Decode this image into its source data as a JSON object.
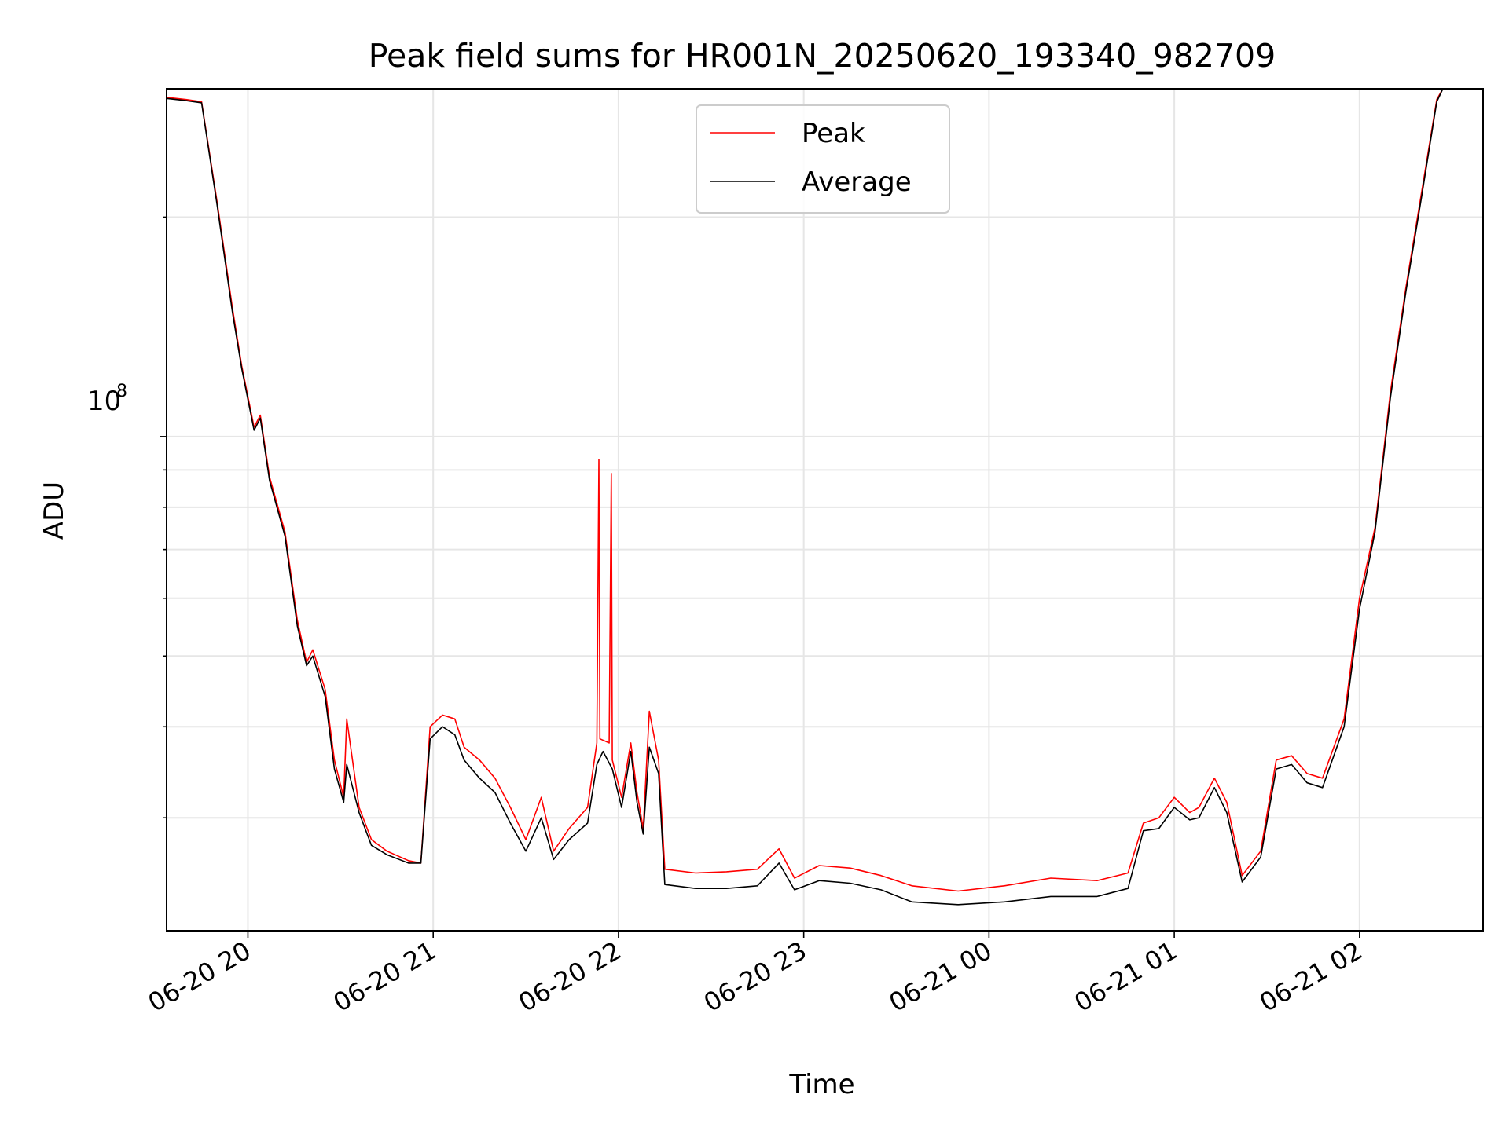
{
  "chart_data": {
    "type": "line",
    "title": "Peak field sums for HR001N_20250620_193340_982709",
    "xlabel": "Time",
    "ylabel": "ADU",
    "x_scale": "time",
    "y_scale": "log",
    "xlim": [
      "2025-06-20 19:33:40",
      "2025-06-21 02:40:00"
    ],
    "ylim": [
      21000000,
      300000000
    ],
    "x_ticks": [
      "06-20 20",
      "06-20 21",
      "06-20 22",
      "06-20 23",
      "06-21 00",
      "06-21 01",
      "06-21 02"
    ],
    "y_tick_label_base": "10",
    "y_tick_label_exp": "8",
    "grid": true,
    "legend_position": "upper center",
    "series": [
      {
        "name": "Peak",
        "color": "#ff0000",
        "points": [
          [
            "2025-06-20 19:33:40",
            292000000
          ],
          [
            "2025-06-20 19:40:00",
            290000000
          ],
          [
            "2025-06-20 19:45:00",
            288000000
          ],
          [
            "2025-06-20 19:50:00",
            210000000
          ],
          [
            "2025-06-20 19:55:00",
            150000000
          ],
          [
            "2025-06-20 19:58:00",
            125000000
          ],
          [
            "2025-06-20 20:02:00",
            103000000
          ],
          [
            "2025-06-20 20:04:00",
            107000000
          ],
          [
            "2025-06-20 20:07:00",
            88000000
          ],
          [
            "2025-06-20 20:12:00",
            74000000
          ],
          [
            "2025-06-20 20:16:00",
            56000000
          ],
          [
            "2025-06-20 20:19:00",
            49000000
          ],
          [
            "2025-06-20 20:21:00",
            51000000
          ],
          [
            "2025-06-20 20:25:00",
            45000000
          ],
          [
            "2025-06-20 20:28:00",
            36000000
          ],
          [
            "2025-06-20 20:31:00",
            32000000
          ],
          [
            "2025-06-20 20:32:00",
            41000000
          ],
          [
            "2025-06-20 20:36:00",
            31000000
          ],
          [
            "2025-06-20 20:40:00",
            28000000
          ],
          [
            "2025-06-20 20:45:00",
            27000000
          ],
          [
            "2025-06-20 20:52:00",
            26200000
          ],
          [
            "2025-06-20 20:56:00",
            26000000
          ],
          [
            "2025-06-20 20:59:00",
            40000000
          ],
          [
            "2025-06-20 21:03:00",
            41500000
          ],
          [
            "2025-06-20 21:07:00",
            41000000
          ],
          [
            "2025-06-20 21:10:00",
            37500000
          ],
          [
            "2025-06-20 21:15:00",
            36000000
          ],
          [
            "2025-06-20 21:20:00",
            34000000
          ],
          [
            "2025-06-20 21:25:00",
            31000000
          ],
          [
            "2025-06-20 21:30:00",
            28000000
          ],
          [
            "2025-06-20 21:35:00",
            32000000
          ],
          [
            "2025-06-20 21:39:00",
            27000000
          ],
          [
            "2025-06-20 21:44:00",
            29000000
          ],
          [
            "2025-06-20 21:50:00",
            31000000
          ],
          [
            "2025-06-20 21:53:00",
            38000000
          ],
          [
            "2025-06-20 21:53:40",
            93000000
          ],
          [
            "2025-06-20 21:54:00",
            38500000
          ],
          [
            "2025-06-20 21:57:00",
            38000000
          ],
          [
            "2025-06-20 21:57:40",
            89000000
          ],
          [
            "2025-06-20 21:58:00",
            36000000
          ],
          [
            "2025-06-20 22:01:00",
            32000000
          ],
          [
            "2025-06-20 22:04:00",
            38000000
          ],
          [
            "2025-06-20 22:06:00",
            32500000
          ],
          [
            "2025-06-20 22:08:00",
            29000000
          ],
          [
            "2025-06-20 22:10:00",
            42000000
          ],
          [
            "2025-06-20 22:13:00",
            36000000
          ],
          [
            "2025-06-20 22:15:00",
            25500000
          ],
          [
            "2025-06-20 22:25:00",
            25200000
          ],
          [
            "2025-06-20 22:35:00",
            25300000
          ],
          [
            "2025-06-20 22:45:00",
            25500000
          ],
          [
            "2025-06-20 22:52:00",
            27200000
          ],
          [
            "2025-06-20 22:57:00",
            24800000
          ],
          [
            "2025-06-20 23:05:00",
            25800000
          ],
          [
            "2025-06-20 23:15:00",
            25600000
          ],
          [
            "2025-06-20 23:25:00",
            25000000
          ],
          [
            "2025-06-20 23:35:00",
            24200000
          ],
          [
            "2025-06-20 23:50:00",
            23800000
          ],
          [
            "2025-06-21 00:05:00",
            24200000
          ],
          [
            "2025-06-21 00:20:00",
            24800000
          ],
          [
            "2025-06-21 00:35:00",
            24600000
          ],
          [
            "2025-06-21 00:45:00",
            25200000
          ],
          [
            "2025-06-21 00:50:00",
            29500000
          ],
          [
            "2025-06-21 00:55:00",
            30000000
          ],
          [
            "2025-06-21 01:00:00",
            32000000
          ],
          [
            "2025-06-21 01:05:00",
            30500000
          ],
          [
            "2025-06-21 01:08:00",
            31000000
          ],
          [
            "2025-06-21 01:13:00",
            34000000
          ],
          [
            "2025-06-21 01:17:00",
            31500000
          ],
          [
            "2025-06-21 01:22:00",
            25000000
          ],
          [
            "2025-06-21 01:28:00",
            27000000
          ],
          [
            "2025-06-21 01:33:00",
            36000000
          ],
          [
            "2025-06-21 01:38:00",
            36500000
          ],
          [
            "2025-06-21 01:43:00",
            34500000
          ],
          [
            "2025-06-21 01:48:00",
            34000000
          ],
          [
            "2025-06-21 01:55:00",
            41000000
          ],
          [
            "2025-06-21 02:00:00",
            60000000
          ],
          [
            "2025-06-21 02:05:00",
            75000000
          ],
          [
            "2025-06-21 02:10:00",
            115000000
          ],
          [
            "2025-06-21 02:15:00",
            160000000
          ],
          [
            "2025-06-21 02:20:00",
            215000000
          ],
          [
            "2025-06-21 02:25:00",
            290000000
          ],
          [
            "2025-06-21 02:27:00",
            300000000
          ]
        ]
      },
      {
        "name": "Average",
        "color": "#000000",
        "points": [
          [
            "2025-06-20 19:33:40",
            291000000
          ],
          [
            "2025-06-20 19:40:00",
            289000000
          ],
          [
            "2025-06-20 19:45:00",
            287000000
          ],
          [
            "2025-06-20 19:50:00",
            208000000
          ],
          [
            "2025-06-20 19:55:00",
            148000000
          ],
          [
            "2025-06-20 19:58:00",
            124000000
          ],
          [
            "2025-06-20 20:02:00",
            102000000
          ],
          [
            "2025-06-20 20:04:00",
            106000000
          ],
          [
            "2025-06-20 20:07:00",
            87000000
          ],
          [
            "2025-06-20 20:12:00",
            73000000
          ],
          [
            "2025-06-20 20:16:00",
            55000000
          ],
          [
            "2025-06-20 20:19:00",
            48500000
          ],
          [
            "2025-06-20 20:21:00",
            50000000
          ],
          [
            "2025-06-20 20:25:00",
            44000000
          ],
          [
            "2025-06-20 20:28:00",
            35000000
          ],
          [
            "2025-06-20 20:31:00",
            31500000
          ],
          [
            "2025-06-20 20:32:00",
            35500000
          ],
          [
            "2025-06-20 20:36:00",
            30500000
          ],
          [
            "2025-06-20 20:40:00",
            27500000
          ],
          [
            "2025-06-20 20:45:00",
            26700000
          ],
          [
            "2025-06-20 20:52:00",
            26000000
          ],
          [
            "2025-06-20 20:56:00",
            26000000
          ],
          [
            "2025-06-20 20:59:00",
            38500000
          ],
          [
            "2025-06-20 21:03:00",
            40000000
          ],
          [
            "2025-06-20 21:07:00",
            39000000
          ],
          [
            "2025-06-20 21:10:00",
            36000000
          ],
          [
            "2025-06-20 21:15:00",
            34000000
          ],
          [
            "2025-06-20 21:20:00",
            32500000
          ],
          [
            "2025-06-20 21:25:00",
            29500000
          ],
          [
            "2025-06-20 21:30:00",
            27000000
          ],
          [
            "2025-06-20 21:35:00",
            30000000
          ],
          [
            "2025-06-20 21:39:00",
            26300000
          ],
          [
            "2025-06-20 21:44:00",
            28000000
          ],
          [
            "2025-06-20 21:50:00",
            29500000
          ],
          [
            "2025-06-20 21:53:00",
            35500000
          ],
          [
            "2025-06-20 21:55:00",
            37000000
          ],
          [
            "2025-06-20 21:58:00",
            35000000
          ],
          [
            "2025-06-20 22:01:00",
            31000000
          ],
          [
            "2025-06-20 22:04:00",
            37000000
          ],
          [
            "2025-06-20 22:06:00",
            31500000
          ],
          [
            "2025-06-20 22:08:00",
            28500000
          ],
          [
            "2025-06-20 22:10:00",
            37500000
          ],
          [
            "2025-06-20 22:13:00",
            34500000
          ],
          [
            "2025-06-20 22:15:00",
            24300000
          ],
          [
            "2025-06-20 22:25:00",
            24000000
          ],
          [
            "2025-06-20 22:35:00",
            24000000
          ],
          [
            "2025-06-20 22:45:00",
            24200000
          ],
          [
            "2025-06-20 22:52:00",
            26000000
          ],
          [
            "2025-06-20 22:57:00",
            23900000
          ],
          [
            "2025-06-20 23:05:00",
            24600000
          ],
          [
            "2025-06-20 23:15:00",
            24400000
          ],
          [
            "2025-06-20 23:25:00",
            23900000
          ],
          [
            "2025-06-20 23:35:00",
            23000000
          ],
          [
            "2025-06-20 23:50:00",
            22800000
          ],
          [
            "2025-06-21 00:05:00",
            23000000
          ],
          [
            "2025-06-21 00:20:00",
            23400000
          ],
          [
            "2025-06-21 00:35:00",
            23400000
          ],
          [
            "2025-06-21 00:45:00",
            24000000
          ],
          [
            "2025-06-21 00:50:00",
            28800000
          ],
          [
            "2025-06-21 00:55:00",
            29000000
          ],
          [
            "2025-06-21 01:00:00",
            31000000
          ],
          [
            "2025-06-21 01:05:00",
            29800000
          ],
          [
            "2025-06-21 01:08:00",
            30000000
          ],
          [
            "2025-06-21 01:13:00",
            33000000
          ],
          [
            "2025-06-21 01:17:00",
            30500000
          ],
          [
            "2025-06-21 01:22:00",
            24500000
          ],
          [
            "2025-06-21 01:28:00",
            26500000
          ],
          [
            "2025-06-21 01:33:00",
            35000000
          ],
          [
            "2025-06-21 01:38:00",
            35500000
          ],
          [
            "2025-06-21 01:43:00",
            33500000
          ],
          [
            "2025-06-21 01:48:00",
            33000000
          ],
          [
            "2025-06-21 01:55:00",
            40000000
          ],
          [
            "2025-06-21 02:00:00",
            58000000
          ],
          [
            "2025-06-21 02:05:00",
            74000000
          ],
          [
            "2025-06-21 02:10:00",
            113000000
          ],
          [
            "2025-06-21 02:15:00",
            158000000
          ],
          [
            "2025-06-21 02:20:00",
            212000000
          ],
          [
            "2025-06-21 02:25:00",
            288000000
          ],
          [
            "2025-06-21 02:27:00",
            300000000
          ]
        ]
      }
    ]
  }
}
